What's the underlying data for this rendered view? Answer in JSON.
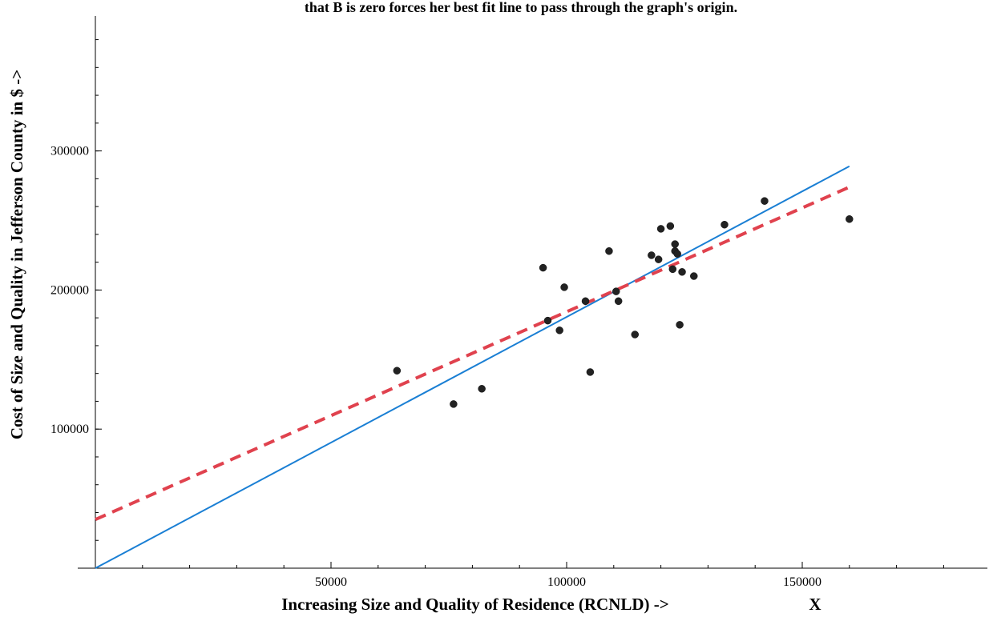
{
  "chart_data": {
    "type": "scatter",
    "title": "that B is zero forces her best fit line to pass through the graph's origin.",
    "xlabel": "Increasing Size and Quality of Residence (RCNLD) ->",
    "xlabel_extra": "X",
    "ylabel": "Cost of Size and Quality in Jefferson County in $ ->",
    "xlim": [
      0,
      190000
    ],
    "ylim": [
      0,
      395000
    ],
    "x_ticks": [
      {
        "value": 50000,
        "label": "50000"
      },
      {
        "value": 100000,
        "label": "100000"
      },
      {
        "value": 150000,
        "label": "150000"
      }
    ],
    "y_ticks": [
      {
        "value": 100000,
        "label": "100000"
      },
      {
        "value": 200000,
        "label": "200000"
      },
      {
        "value": 300000,
        "label": "300000"
      }
    ],
    "x_minor_step": 10000,
    "y_minor_step": 20000,
    "grid": false,
    "points": [
      {
        "x": 64000,
        "y": 142000
      },
      {
        "x": 76000,
        "y": 118000
      },
      {
        "x": 82000,
        "y": 129000
      },
      {
        "x": 95000,
        "y": 216000
      },
      {
        "x": 96000,
        "y": 178000
      },
      {
        "x": 98500,
        "y": 171000
      },
      {
        "x": 99500,
        "y": 202000
      },
      {
        "x": 104000,
        "y": 192000
      },
      {
        "x": 105000,
        "y": 141000
      },
      {
        "x": 109000,
        "y": 228000
      },
      {
        "x": 110500,
        "y": 199000
      },
      {
        "x": 111000,
        "y": 192000
      },
      {
        "x": 114500,
        "y": 168000
      },
      {
        "x": 118000,
        "y": 225000
      },
      {
        "x": 119500,
        "y": 222000
      },
      {
        "x": 120000,
        "y": 244000
      },
      {
        "x": 122000,
        "y": 246000
      },
      {
        "x": 122500,
        "y": 215000
      },
      {
        "x": 123000,
        "y": 233000
      },
      {
        "x": 123000,
        "y": 228000
      },
      {
        "x": 123500,
        "y": 226000
      },
      {
        "x": 124000,
        "y": 175000
      },
      {
        "x": 124500,
        "y": 213000
      },
      {
        "x": 127000,
        "y": 210000
      },
      {
        "x": 133500,
        "y": 247000
      },
      {
        "x": 142000,
        "y": 264000
      },
      {
        "x": 160000,
        "y": 251000
      }
    ],
    "lines": [
      {
        "style": "solid",
        "color": "#1a7fd4",
        "x": [
          0,
          160000
        ],
        "y": [
          0,
          289000
        ]
      },
      {
        "style": "dashed",
        "color": "#e0424e",
        "x": [
          0,
          160000
        ],
        "y": [
          35000,
          274000
        ]
      }
    ]
  }
}
